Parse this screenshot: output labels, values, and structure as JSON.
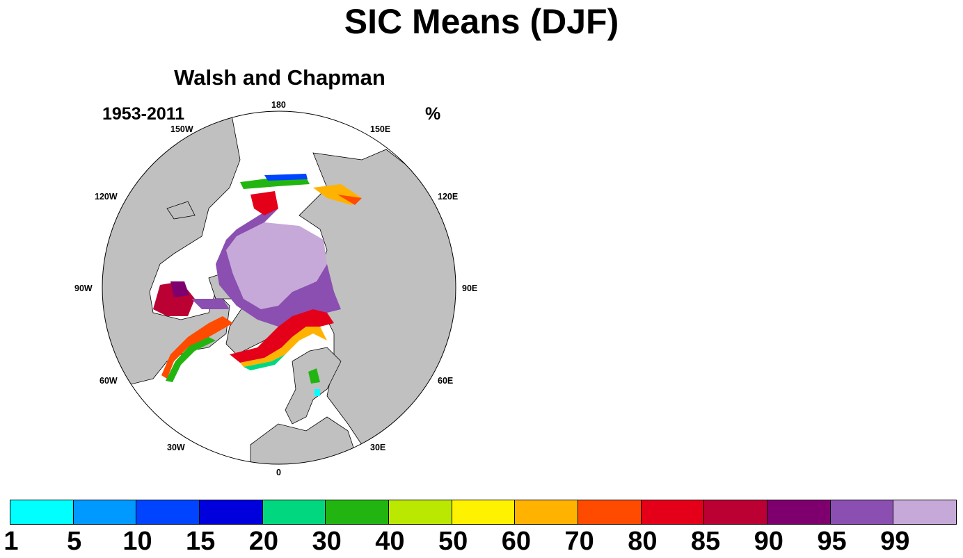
{
  "title": "SIC Means (DJF)",
  "panel": {
    "title": "Walsh and Chapman",
    "left_string": "1953-2011",
    "right_string": "%"
  },
  "longitude_labels": [
    "180",
    "150E",
    "120E",
    "90E",
    "60E",
    "30E",
    "0",
    "30W",
    "60W",
    "90W",
    "120W",
    "150W"
  ],
  "colorbar": {
    "labels": [
      "1",
      "5",
      "10",
      "15",
      "20",
      "30",
      "40",
      "50",
      "60",
      "70",
      "80",
      "85",
      "90",
      "95",
      "99"
    ],
    "colors": [
      "#00ffff",
      "#0099ff",
      "#0044ff",
      "#0000dd",
      "#00d77f",
      "#22b511",
      "#bbe800",
      "#fff200",
      "#ffb300",
      "#ff4b00",
      "#e5001a",
      "#bb0033",
      "#7e006f",
      "#8a4fb1",
      "#c6a9d8"
    ]
  },
  "colors": {
    "land": "#c0c0c0",
    "ocean": "#ffffff",
    "coast": "#000000"
  }
}
